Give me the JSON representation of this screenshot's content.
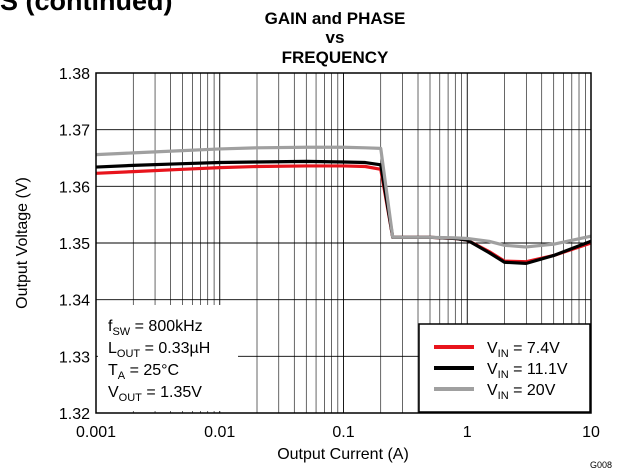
{
  "page": {
    "header_fragment": "S (continued)"
  },
  "chart_data": {
    "type": "line",
    "title_lines": [
      "GAIN and PHASE",
      "vs",
      "FREQUENCY"
    ],
    "xlabel": "Output Current (A)",
    "ylabel": "Output Voltage (V)",
    "x_scale": "log",
    "xlim": [
      0.001,
      10
    ],
    "ylim": [
      1.32,
      1.38
    ],
    "grid": true,
    "x_ticks": [
      0.001,
      0.01,
      0.1,
      1,
      10
    ],
    "x_tick_labels": [
      "0.001",
      "0.01",
      "0.1",
      "1",
      "10"
    ],
    "y_ticks": [
      1.32,
      1.33,
      1.34,
      1.35,
      1.36,
      1.37,
      1.38
    ],
    "y_tick_labels": [
      "1.32",
      "1.33",
      "1.34",
      "1.35",
      "1.36",
      "1.37",
      "1.38"
    ],
    "conditions": [
      {
        "main": "f",
        "sub": "SW",
        "rest": " = 800kHz"
      },
      {
        "main": "L",
        "sub": "OUT",
        "rest": " = 0.33µH"
      },
      {
        "main": "T",
        "sub": "A",
        "rest": " = 25°C"
      },
      {
        "main": "V",
        "sub": "OUT",
        "rest": " = 1.35V"
      }
    ],
    "legend_position": "bottom-right",
    "series": [
      {
        "label_main": "V",
        "label_sub": "IN",
        "label_rest": " = 7.4V",
        "color": "#e8141c",
        "x": [
          0.001,
          0.002,
          0.005,
          0.01,
          0.02,
          0.05,
          0.1,
          0.15,
          0.2,
          0.25,
          0.3,
          0.5,
          0.8,
          1.0,
          1.5,
          2.0,
          3.0,
          5.0,
          10.0
        ],
        "y": [
          1.3623,
          1.3626,
          1.363,
          1.3633,
          1.3635,
          1.3636,
          1.3636,
          1.3635,
          1.363,
          1.351,
          1.351,
          1.351,
          1.3508,
          1.3505,
          1.3485,
          1.3468,
          1.3467,
          1.3478,
          1.35
        ]
      },
      {
        "label_main": "V",
        "label_sub": "IN",
        "label_rest": " = 11.1V",
        "color": "#000000",
        "x": [
          0.001,
          0.002,
          0.005,
          0.01,
          0.02,
          0.05,
          0.1,
          0.15,
          0.2,
          0.25,
          0.3,
          0.5,
          0.8,
          1.0,
          1.5,
          2.0,
          3.0,
          5.0,
          10.0
        ],
        "y": [
          1.3634,
          1.3637,
          1.364,
          1.3642,
          1.3643,
          1.3644,
          1.3643,
          1.3642,
          1.3638,
          1.351,
          1.351,
          1.351,
          1.3508,
          1.3505,
          1.3483,
          1.3466,
          1.3464,
          1.3478,
          1.3503
        ]
      },
      {
        "label_main": "V",
        "label_sub": "IN",
        "label_rest": " = 20V",
        "color": "#a0a0a0",
        "x": [
          0.001,
          0.002,
          0.005,
          0.01,
          0.02,
          0.05,
          0.1,
          0.15,
          0.2,
          0.25,
          0.3,
          0.5,
          0.8,
          1.0,
          1.5,
          2.0,
          3.0,
          5.0,
          10.0
        ],
        "y": [
          1.3656,
          1.3659,
          1.3663,
          1.3666,
          1.3668,
          1.3669,
          1.3669,
          1.3668,
          1.3667,
          1.351,
          1.351,
          1.351,
          1.3509,
          1.3508,
          1.3503,
          1.3496,
          1.3493,
          1.3498,
          1.3512
        ]
      }
    ],
    "figure_id": "G008"
  }
}
